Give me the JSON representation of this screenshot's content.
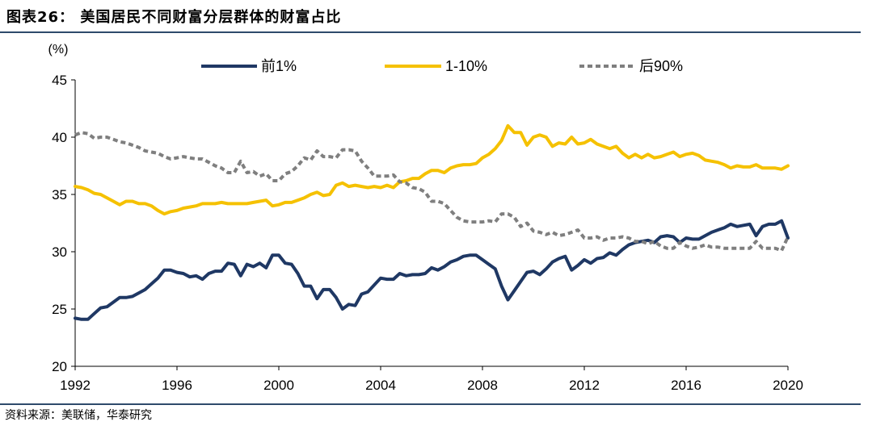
{
  "header": {
    "title": "图表26：  美国居民不同财富分层群体的财富占比"
  },
  "footer": {
    "source": "资料来源：美联储，华泰研究"
  },
  "chart_data": {
    "type": "line",
    "unit_label": "(%)",
    "ylim": [
      20,
      45
    ],
    "yticks": [
      20,
      25,
      30,
      35,
      40,
      45
    ],
    "xlim": [
      1992,
      2020
    ],
    "xticks": [
      1992,
      1996,
      2000,
      2004,
      2008,
      2012,
      2016,
      2020
    ],
    "legend_position": "top",
    "series": [
      {
        "name": "前1%",
        "color": "#1F3864",
        "style": "solid",
        "x": [
          1992.0,
          1992.25,
          1992.5,
          1992.75,
          1993.0,
          1993.25,
          1993.5,
          1993.75,
          1994.0,
          1994.25,
          1994.5,
          1994.75,
          1995.0,
          1995.25,
          1995.5,
          1995.75,
          1996.0,
          1996.25,
          1996.5,
          1996.75,
          1997.0,
          1997.25,
          1997.5,
          1997.75,
          1998.0,
          1998.25,
          1998.5,
          1998.75,
          1999.0,
          1999.25,
          1999.5,
          1999.75,
          2000.0,
          2000.25,
          2000.5,
          2000.75,
          2001.0,
          2001.25,
          2001.5,
          2001.75,
          2002.0,
          2002.25,
          2002.5,
          2002.75,
          2003.0,
          2003.25,
          2003.5,
          2003.75,
          2004.0,
          2004.25,
          2004.5,
          2004.75,
          2005.0,
          2005.25,
          2005.5,
          2005.75,
          2006.0,
          2006.25,
          2006.5,
          2006.75,
          2007.0,
          2007.25,
          2007.5,
          2007.75,
          2008.0,
          2008.25,
          2008.5,
          2008.75,
          2009.0,
          2009.25,
          2009.5,
          2009.75,
          2010.0,
          2010.25,
          2010.5,
          2010.75,
          2011.0,
          2011.25,
          2011.5,
          2011.75,
          2012.0,
          2012.25,
          2012.5,
          2012.75,
          2013.0,
          2013.25,
          2013.5,
          2013.75,
          2014.0,
          2014.25,
          2014.5,
          2014.75,
          2015.0,
          2015.25,
          2015.5,
          2015.75,
          2016.0,
          2016.25,
          2016.5,
          2016.75,
          2017.0,
          2017.25,
          2017.5,
          2017.75,
          2018.0,
          2018.25,
          2018.5,
          2018.75,
          2019.0,
          2019.25,
          2019.5,
          2019.75,
          2020.0
        ],
        "values": [
          24.2,
          24.1,
          24.1,
          24.6,
          25.1,
          25.2,
          25.6,
          26.0,
          26.0,
          26.1,
          26.4,
          26.7,
          27.2,
          27.7,
          28.4,
          28.4,
          28.2,
          28.1,
          27.8,
          27.9,
          27.6,
          28.1,
          28.3,
          28.3,
          29.0,
          28.9,
          27.9,
          28.9,
          28.7,
          29.0,
          28.6,
          29.7,
          29.7,
          29.0,
          28.9,
          28.1,
          27.0,
          27.0,
          25.9,
          26.7,
          26.7,
          26.0,
          25.0,
          25.4,
          25.3,
          26.3,
          26.5,
          27.1,
          27.7,
          27.6,
          27.6,
          28.1,
          27.9,
          28.0,
          28.0,
          28.1,
          28.6,
          28.4,
          28.7,
          29.1,
          29.3,
          29.6,
          29.7,
          29.7,
          29.3,
          28.9,
          28.5,
          27.0,
          25.8,
          26.6,
          27.4,
          28.2,
          28.3,
          28.0,
          28.5,
          29.1,
          29.4,
          29.6,
          28.4,
          28.8,
          29.3,
          29.0,
          29.4,
          29.5,
          29.9,
          29.7,
          30.2,
          30.6,
          30.8,
          30.9,
          31.0,
          30.8,
          31.3,
          31.4,
          31.3,
          30.8,
          31.2,
          31.1,
          31.1,
          31.4,
          31.7,
          31.9,
          32.1,
          32.4,
          32.2,
          32.3,
          32.4,
          31.4,
          32.2,
          32.4,
          32.4,
          32.7,
          31.2
        ]
      },
      {
        "name": "1-10%",
        "color": "#F5C100",
        "style": "solid",
        "x": [
          1992.0,
          1992.25,
          1992.5,
          1992.75,
          1993.0,
          1993.25,
          1993.5,
          1993.75,
          1994.0,
          1994.25,
          1994.5,
          1994.75,
          1995.0,
          1995.25,
          1995.5,
          1995.75,
          1996.0,
          1996.25,
          1996.5,
          1996.75,
          1997.0,
          1997.25,
          1997.5,
          1997.75,
          1998.0,
          1998.25,
          1998.5,
          1998.75,
          1999.0,
          1999.25,
          1999.5,
          1999.75,
          2000.0,
          2000.25,
          2000.5,
          2000.75,
          2001.0,
          2001.25,
          2001.5,
          2001.75,
          2002.0,
          2002.25,
          2002.5,
          2002.75,
          2003.0,
          2003.25,
          2003.5,
          2003.75,
          2004.0,
          2004.25,
          2004.5,
          2004.75,
          2005.0,
          2005.25,
          2005.5,
          2005.75,
          2006.0,
          2006.25,
          2006.5,
          2006.75,
          2007.0,
          2007.25,
          2007.5,
          2007.75,
          2008.0,
          2008.25,
          2008.5,
          2008.75,
          2009.0,
          2009.25,
          2009.5,
          2009.75,
          2010.0,
          2010.25,
          2010.5,
          2010.75,
          2011.0,
          2011.25,
          2011.5,
          2011.75,
          2012.0,
          2012.25,
          2012.5,
          2012.75,
          2013.0,
          2013.25,
          2013.5,
          2013.75,
          2014.0,
          2014.25,
          2014.5,
          2014.75,
          2015.0,
          2015.25,
          2015.5,
          2015.75,
          2016.0,
          2016.25,
          2016.5,
          2016.75,
          2017.0,
          2017.25,
          2017.5,
          2017.75,
          2018.0,
          2018.25,
          2018.5,
          2018.75,
          2019.0,
          2019.25,
          2019.5,
          2019.75,
          2020.0
        ],
        "values": [
          35.7,
          35.6,
          35.4,
          35.1,
          35.0,
          34.7,
          34.4,
          34.1,
          34.4,
          34.4,
          34.2,
          34.2,
          34.0,
          33.6,
          33.3,
          33.5,
          33.6,
          33.8,
          33.9,
          34.0,
          34.2,
          34.2,
          34.2,
          34.3,
          34.2,
          34.2,
          34.2,
          34.2,
          34.3,
          34.4,
          34.5,
          34.0,
          34.1,
          34.3,
          34.3,
          34.5,
          34.7,
          35.0,
          35.2,
          34.9,
          35.0,
          35.8,
          36.0,
          35.7,
          35.8,
          35.7,
          35.6,
          35.7,
          35.6,
          35.8,
          35.6,
          36.1,
          36.2,
          36.4,
          36.4,
          36.8,
          37.1,
          37.1,
          36.9,
          37.3,
          37.5,
          37.6,
          37.6,
          37.7,
          38.2,
          38.5,
          39.0,
          39.7,
          41.0,
          40.4,
          40.4,
          39.3,
          40.0,
          40.2,
          40.0,
          39.2,
          39.5,
          39.4,
          40.0,
          39.4,
          39.5,
          39.8,
          39.4,
          39.2,
          39.0,
          39.2,
          38.6,
          38.2,
          38.5,
          38.2,
          38.5,
          38.2,
          38.3,
          38.5,
          38.7,
          38.3,
          38.5,
          38.6,
          38.4,
          38.0,
          37.9,
          37.8,
          37.6,
          37.3,
          37.5,
          37.4,
          37.4,
          37.6,
          37.3,
          37.3,
          37.3,
          37.2,
          37.5
        ]
      },
      {
        "name": "后90%",
        "color": "#7F7F7F",
        "style": "dashed",
        "x": [
          1992.0,
          1992.25,
          1992.5,
          1992.75,
          1993.0,
          1993.25,
          1993.5,
          1993.75,
          1994.0,
          1994.25,
          1994.5,
          1994.75,
          1995.0,
          1995.25,
          1995.5,
          1995.75,
          1996.0,
          1996.25,
          1996.5,
          1996.75,
          1997.0,
          1997.25,
          1997.5,
          1997.75,
          1998.0,
          1998.25,
          1998.5,
          1998.75,
          1999.0,
          1999.25,
          1999.5,
          1999.75,
          2000.0,
          2000.25,
          2000.5,
          2000.75,
          2001.0,
          2001.25,
          2001.5,
          2001.75,
          2002.0,
          2002.25,
          2002.5,
          2002.75,
          2003.0,
          2003.25,
          2003.5,
          2003.75,
          2004.0,
          2004.25,
          2004.5,
          2004.75,
          2005.0,
          2005.25,
          2005.5,
          2005.75,
          2006.0,
          2006.25,
          2006.5,
          2006.75,
          2007.0,
          2007.25,
          2007.5,
          2007.75,
          2008.0,
          2008.25,
          2008.5,
          2008.75,
          2009.0,
          2009.25,
          2009.5,
          2009.75,
          2010.0,
          2010.25,
          2010.5,
          2010.75,
          2011.0,
          2011.25,
          2011.5,
          2011.75,
          2012.0,
          2012.25,
          2012.5,
          2012.75,
          2013.0,
          2013.25,
          2013.5,
          2013.75,
          2014.0,
          2014.25,
          2014.5,
          2014.75,
          2015.0,
          2015.25,
          2015.5,
          2015.75,
          2016.0,
          2016.25,
          2016.5,
          2016.75,
          2017.0,
          2017.25,
          2017.5,
          2017.75,
          2018.0,
          2018.25,
          2018.5,
          2018.75,
          2019.0,
          2019.25,
          2019.5,
          2019.75,
          2020.0
        ],
        "values": [
          40.2,
          40.4,
          40.3,
          39.9,
          40.0,
          40.0,
          39.8,
          39.6,
          39.5,
          39.3,
          39.1,
          38.8,
          38.7,
          38.6,
          38.3,
          38.1,
          38.2,
          38.3,
          38.2,
          38.1,
          38.1,
          37.8,
          37.5,
          37.3,
          36.9,
          36.9,
          37.9,
          36.9,
          37.0,
          36.6,
          36.8,
          36.2,
          36.2,
          36.8,
          37.0,
          37.5,
          38.2,
          38.0,
          38.8,
          38.3,
          38.3,
          38.2,
          38.9,
          38.9,
          38.8,
          37.9,
          37.3,
          36.6,
          36.6,
          36.6,
          36.7,
          36.1,
          36.0,
          35.6,
          35.5,
          35.2,
          34.4,
          34.4,
          34.2,
          33.6,
          33.0,
          32.7,
          32.6,
          32.6,
          32.6,
          32.7,
          32.6,
          33.3,
          33.3,
          33.0,
          32.2,
          32.5,
          31.8,
          31.7,
          31.5,
          31.7,
          31.4,
          31.5,
          31.7,
          31.9,
          31.2,
          31.2,
          31.3,
          31.0,
          31.2,
          31.2,
          31.3,
          31.2,
          30.9,
          30.9,
          30.7,
          30.9,
          30.5,
          30.3,
          30.3,
          30.8,
          30.5,
          30.3,
          30.4,
          30.6,
          30.4,
          30.4,
          30.3,
          30.3,
          30.3,
          30.3,
          30.3,
          30.9,
          30.3,
          30.3,
          30.3,
          30.1,
          31.3
        ]
      }
    ]
  }
}
